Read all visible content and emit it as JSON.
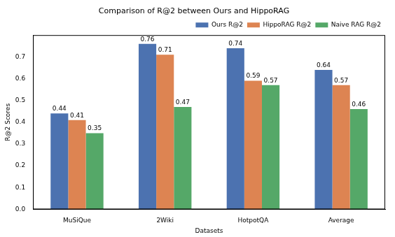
{
  "chart_data": {
    "type": "bar",
    "title": "Comparison of R@2 between Ours and HippoRAG",
    "x_label": "Datasets",
    "y_label": "R@2 Scores",
    "categories": [
      "MuSiQue",
      "2Wiki",
      "HotpotQA",
      "Average"
    ],
    "series": [
      {
        "name": "Ours R@2",
        "color": "#4c72b0",
        "values": [
          0.44,
          0.76,
          0.74,
          0.64
        ]
      },
      {
        "name": "HippoRAG R@2",
        "color": "#dd8452",
        "values": [
          0.41,
          0.71,
          0.59,
          0.57
        ]
      },
      {
        "name": "Naive RAG R@2",
        "color": "#55a868",
        "values": [
          0.35,
          0.47,
          0.57,
          0.46
        ]
      }
    ],
    "ylim": [
      0,
      0.8
    ],
    "yticks": [
      {
        "value": 0,
        "label": "0.0"
      },
      0.1,
      0.2,
      0.3,
      0.4,
      0.5,
      0.6,
      0.7
    ],
    "grid": false,
    "legend": "upper right",
    "data_labels": true
  }
}
